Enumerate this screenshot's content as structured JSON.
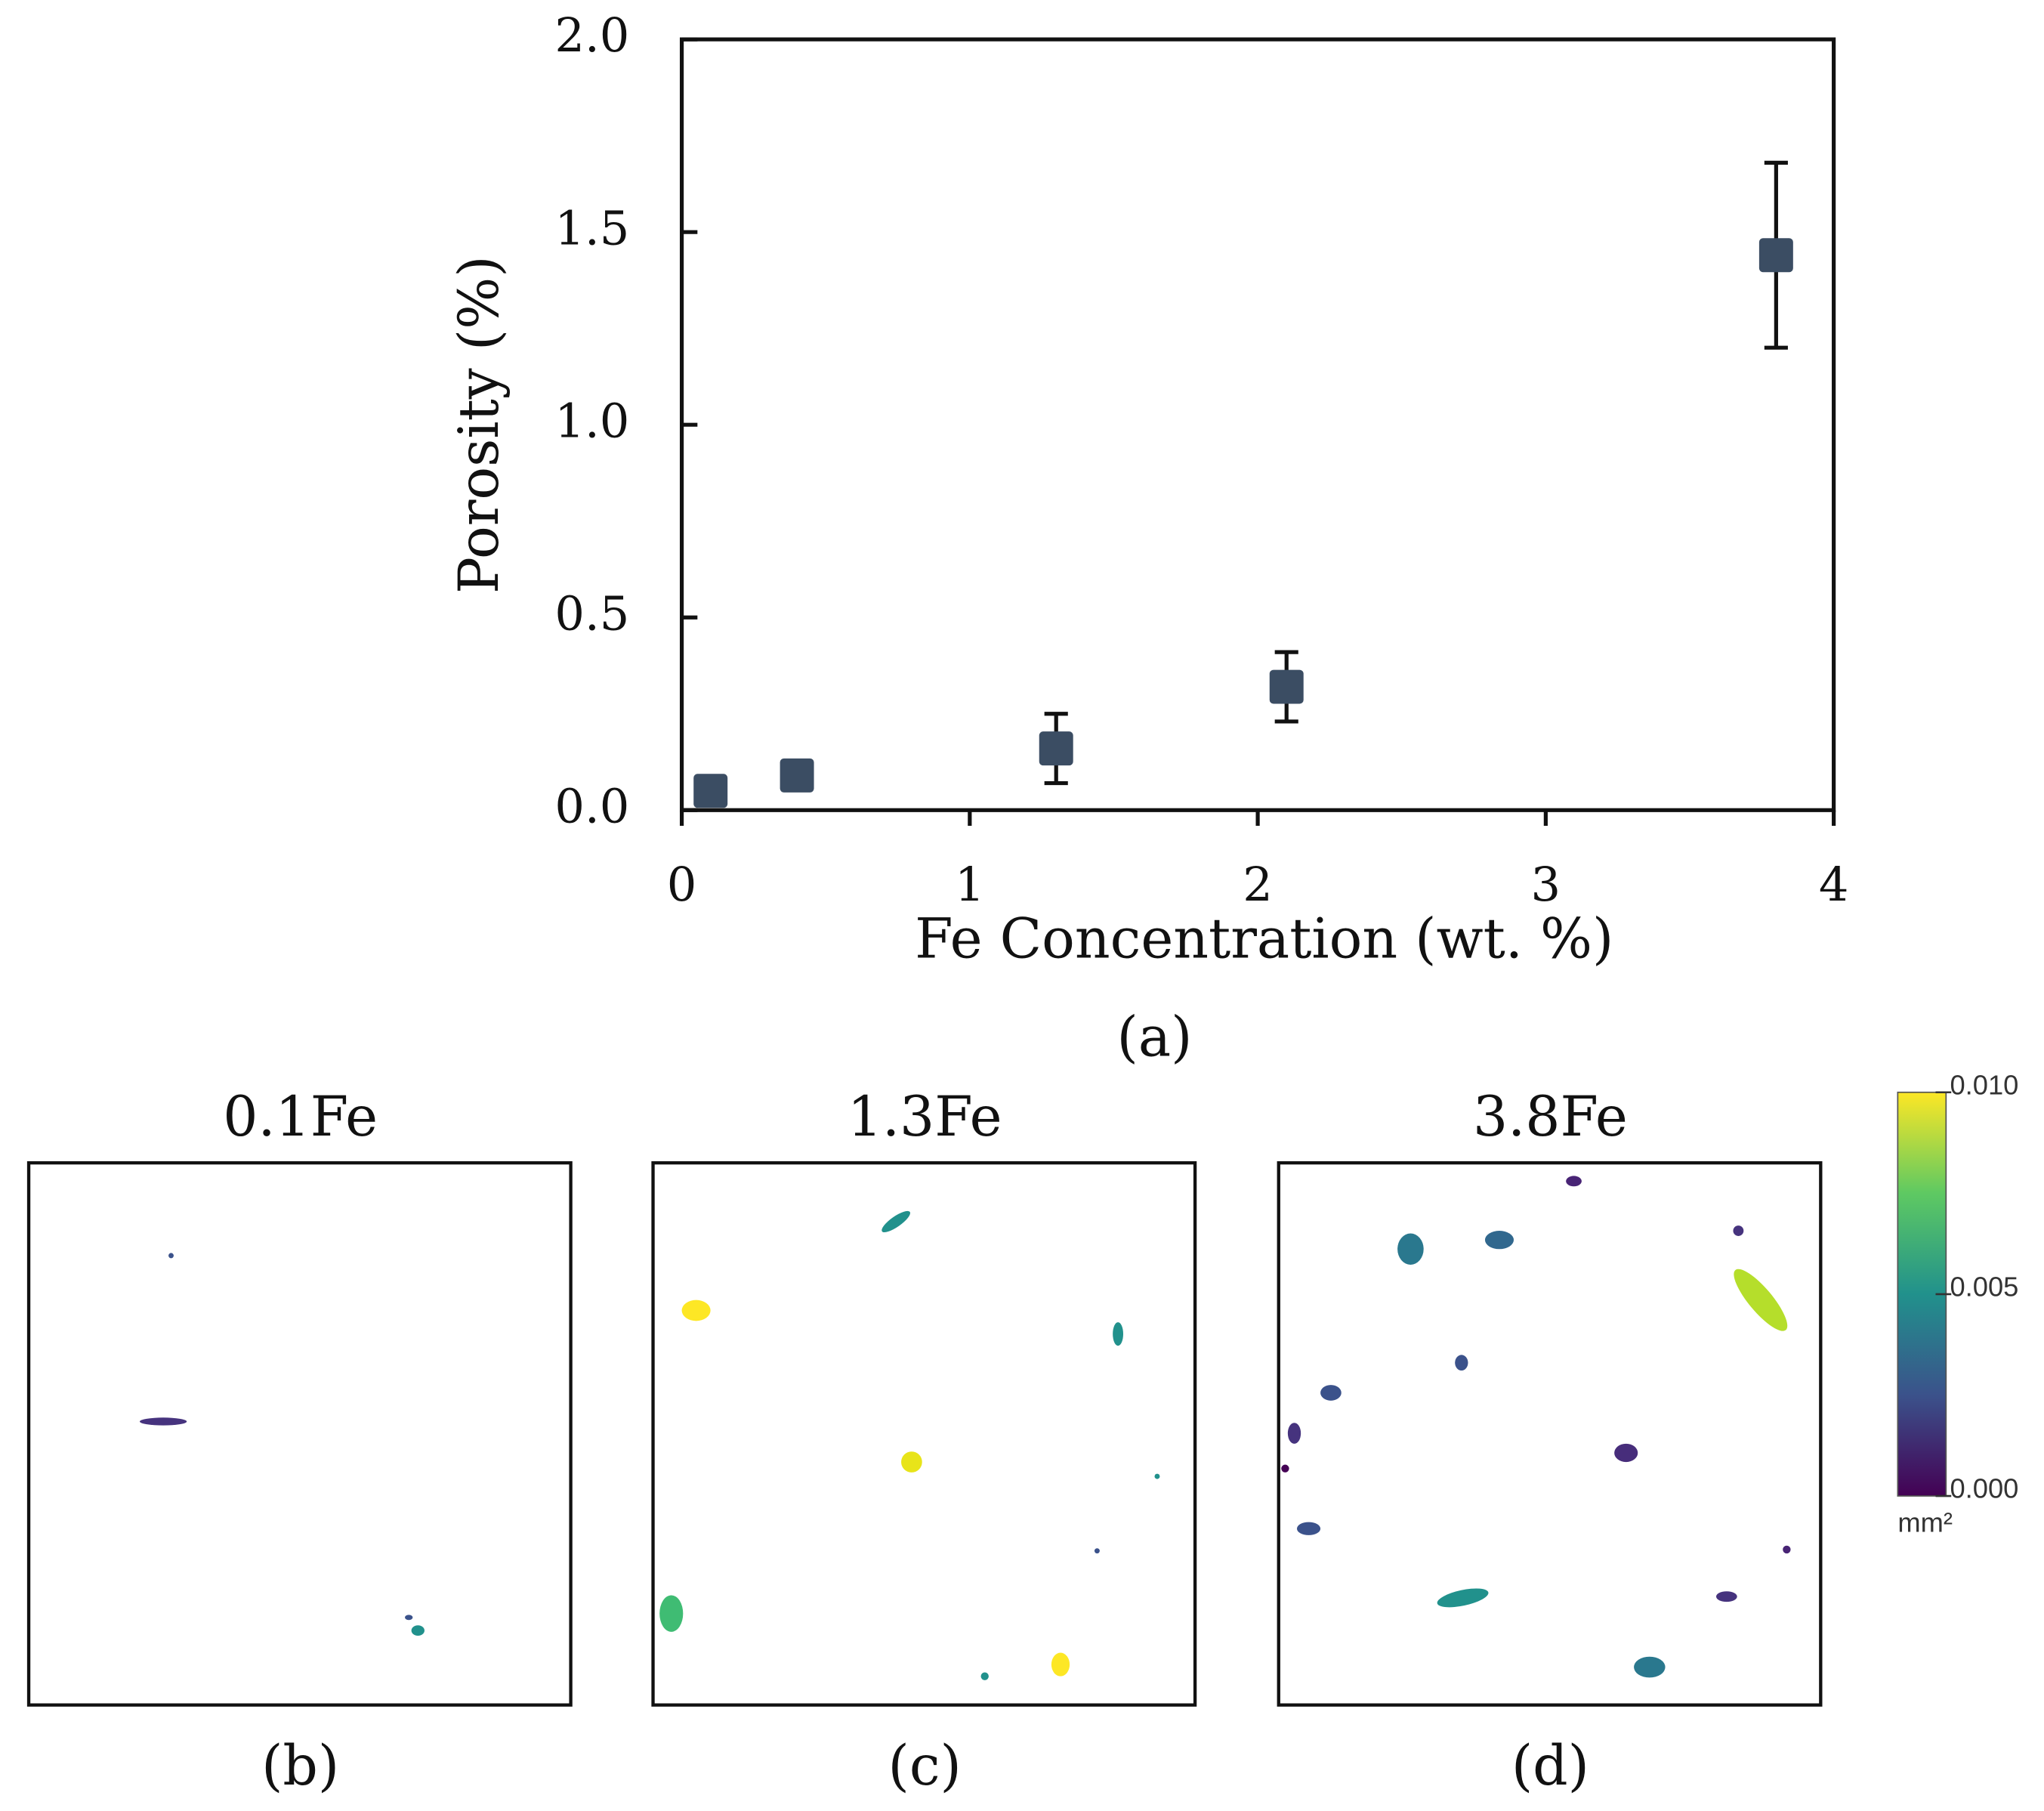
{
  "chart_data": {
    "type": "scatter",
    "xlabel": "Fe Concentration (wt. %)",
    "ylabel": "Porosity (%)",
    "caption": "(a)",
    "x": [
      0.1,
      0.4,
      1.3,
      2.1,
      3.8
    ],
    "values": [
      0.05,
      0.09,
      0.16,
      0.32,
      1.44
    ],
    "errors": [
      null,
      null,
      0.09,
      0.09,
      0.24
    ],
    "color": "#3b4d63",
    "xlim": [
      0,
      4
    ],
    "xticks": [
      0,
      1,
      2,
      3,
      4
    ],
    "ylim": [
      0,
      2
    ],
    "yticks": [
      {
        "value": 0,
        "label": "0.0"
      },
      {
        "value": 0.5,
        "label": "0.5"
      },
      {
        "value": 1,
        "label": "1.0"
      },
      {
        "value": 1.5,
        "label": "1.5"
      },
      {
        "value": 2,
        "label": "2.0"
      }
    ]
  },
  "panels": [
    {
      "title": "0.1Fe",
      "caption": "(b)"
    },
    {
      "title": "1.3Fe",
      "caption": "(c)"
    },
    {
      "title": "3.8Fe",
      "caption": "(d)"
    }
  ],
  "colorbar": {
    "lim": [
      0,
      0.01
    ],
    "unit": "mm²",
    "ticks": [
      {
        "value": 0.01,
        "label": "0.010"
      },
      {
        "value": 0.005,
        "label": "0.005"
      },
      {
        "value": 0,
        "label": "0.000"
      }
    ]
  }
}
